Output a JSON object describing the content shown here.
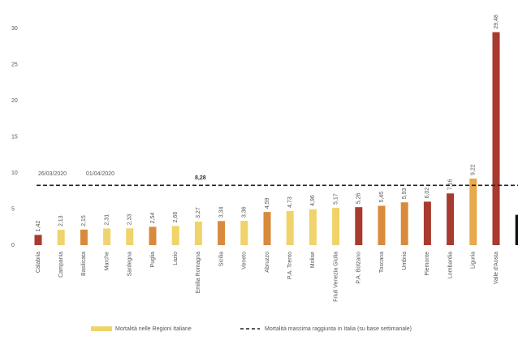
{
  "chart_data": {
    "type": "bar",
    "categories": [
      "Calabria",
      "Campania",
      "Basilicata",
      "Marche",
      "Sardegna",
      "Puglia",
      "Lazio",
      "Emilia Romagna",
      "Sicilia",
      "Veneto",
      "Abruzzo",
      "P.A. Trento",
      "Molise",
      "Friuli Venezia Giulia",
      "P.A. Bolzano",
      "Toscana",
      "Umbria",
      "Piemonte",
      "Lombardia",
      "Liguria",
      "Valle d'Aosta",
      null
    ],
    "values": [
      1.42,
      2.13,
      2.15,
      2.31,
      2.33,
      2.54,
      2.66,
      3.27,
      3.34,
      3.36,
      4.59,
      4.73,
      4.96,
      5.17,
      5.26,
      5.45,
      5.93,
      6.02,
      7.16,
      9.22,
      29.48,
      4.2
    ],
    "value_labels": [
      "1,42",
      "2,13",
      "2,15",
      "2,31",
      "2,33",
      "2,54",
      "2,66",
      "3,27",
      "3,34",
      "3,36",
      "4,59",
      "4,73",
      "4,96",
      "5,17",
      "5,26",
      "5,45",
      "5,93",
      "6,02",
      "7,16",
      "9,22",
      "29,48",
      null
    ],
    "colors": [
      "#a83a2e",
      "#f0d36a",
      "#d98a3c",
      "#f0d36a",
      "#f0d36a",
      "#d98a3c",
      "#f0d36a",
      "#f0d36a",
      "#d98a3c",
      "#f0d36a",
      "#d98a3c",
      "#f0d36a",
      "#f0d36a",
      "#f0d36a",
      "#a83a2e",
      "#d98a3c",
      "#d98a3c",
      "#a83a2e",
      "#a83a2e",
      "#e8a94a",
      "#a83a2e",
      "#111111"
    ],
    "ylim": [
      0,
      30
    ],
    "yticks": [
      0,
      5,
      10,
      15,
      20,
      25,
      30
    ],
    "reference_line": {
      "value": 8.28,
      "label": "8,28"
    },
    "annotations": [
      "26/03/2020",
      "01/04/2020"
    ],
    "legend": [
      {
        "label": "Mortalità nelle Regioni Italiane",
        "color": "#f0d36a",
        "style": "bar"
      },
      {
        "label": "Mortalità massima raggiunta in Italia (su base settimanale)",
        "color": "#222222",
        "style": "dashed"
      }
    ]
  }
}
